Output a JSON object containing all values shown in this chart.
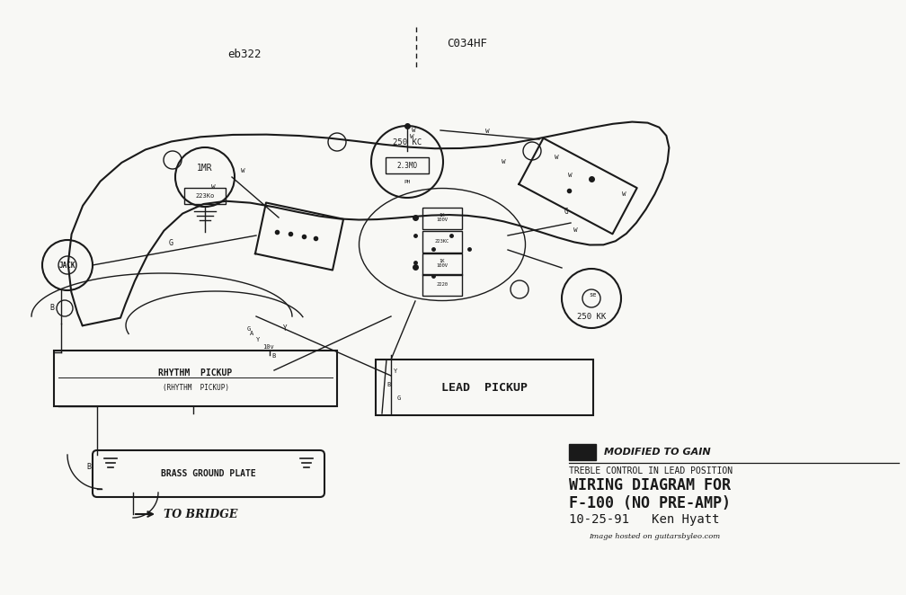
{
  "bg_color": "#f8f8f5",
  "line_color": "#1a1a1a",
  "subtitle_line1": "MODIFIED TO GAIN",
  "subtitle_line2": "TREBLE CONTROL IN LEAD POSITION",
  "footer": "Image hosted on guitarsbyleo.com",
  "label_ebq2": "eb322",
  "label_c034hf": "C034HF",
  "label_jack": "JACK",
  "label_1mr": "1MR",
  "label_250kc": "250 KC",
  "label_250kk": "250 KK",
  "label_rhythm_pickup": "RHYTHM  PICKUP",
  "label_lead_pickup": "LEAD  PICKUP",
  "label_brass_ground": "BRASS GROUND PLATE",
  "label_to_bridge": "TO BRIDGE",
  "label_223ko": "223Ko",
  "label_223kc": "223KC",
  "label_2_3mo": "2.3MO"
}
